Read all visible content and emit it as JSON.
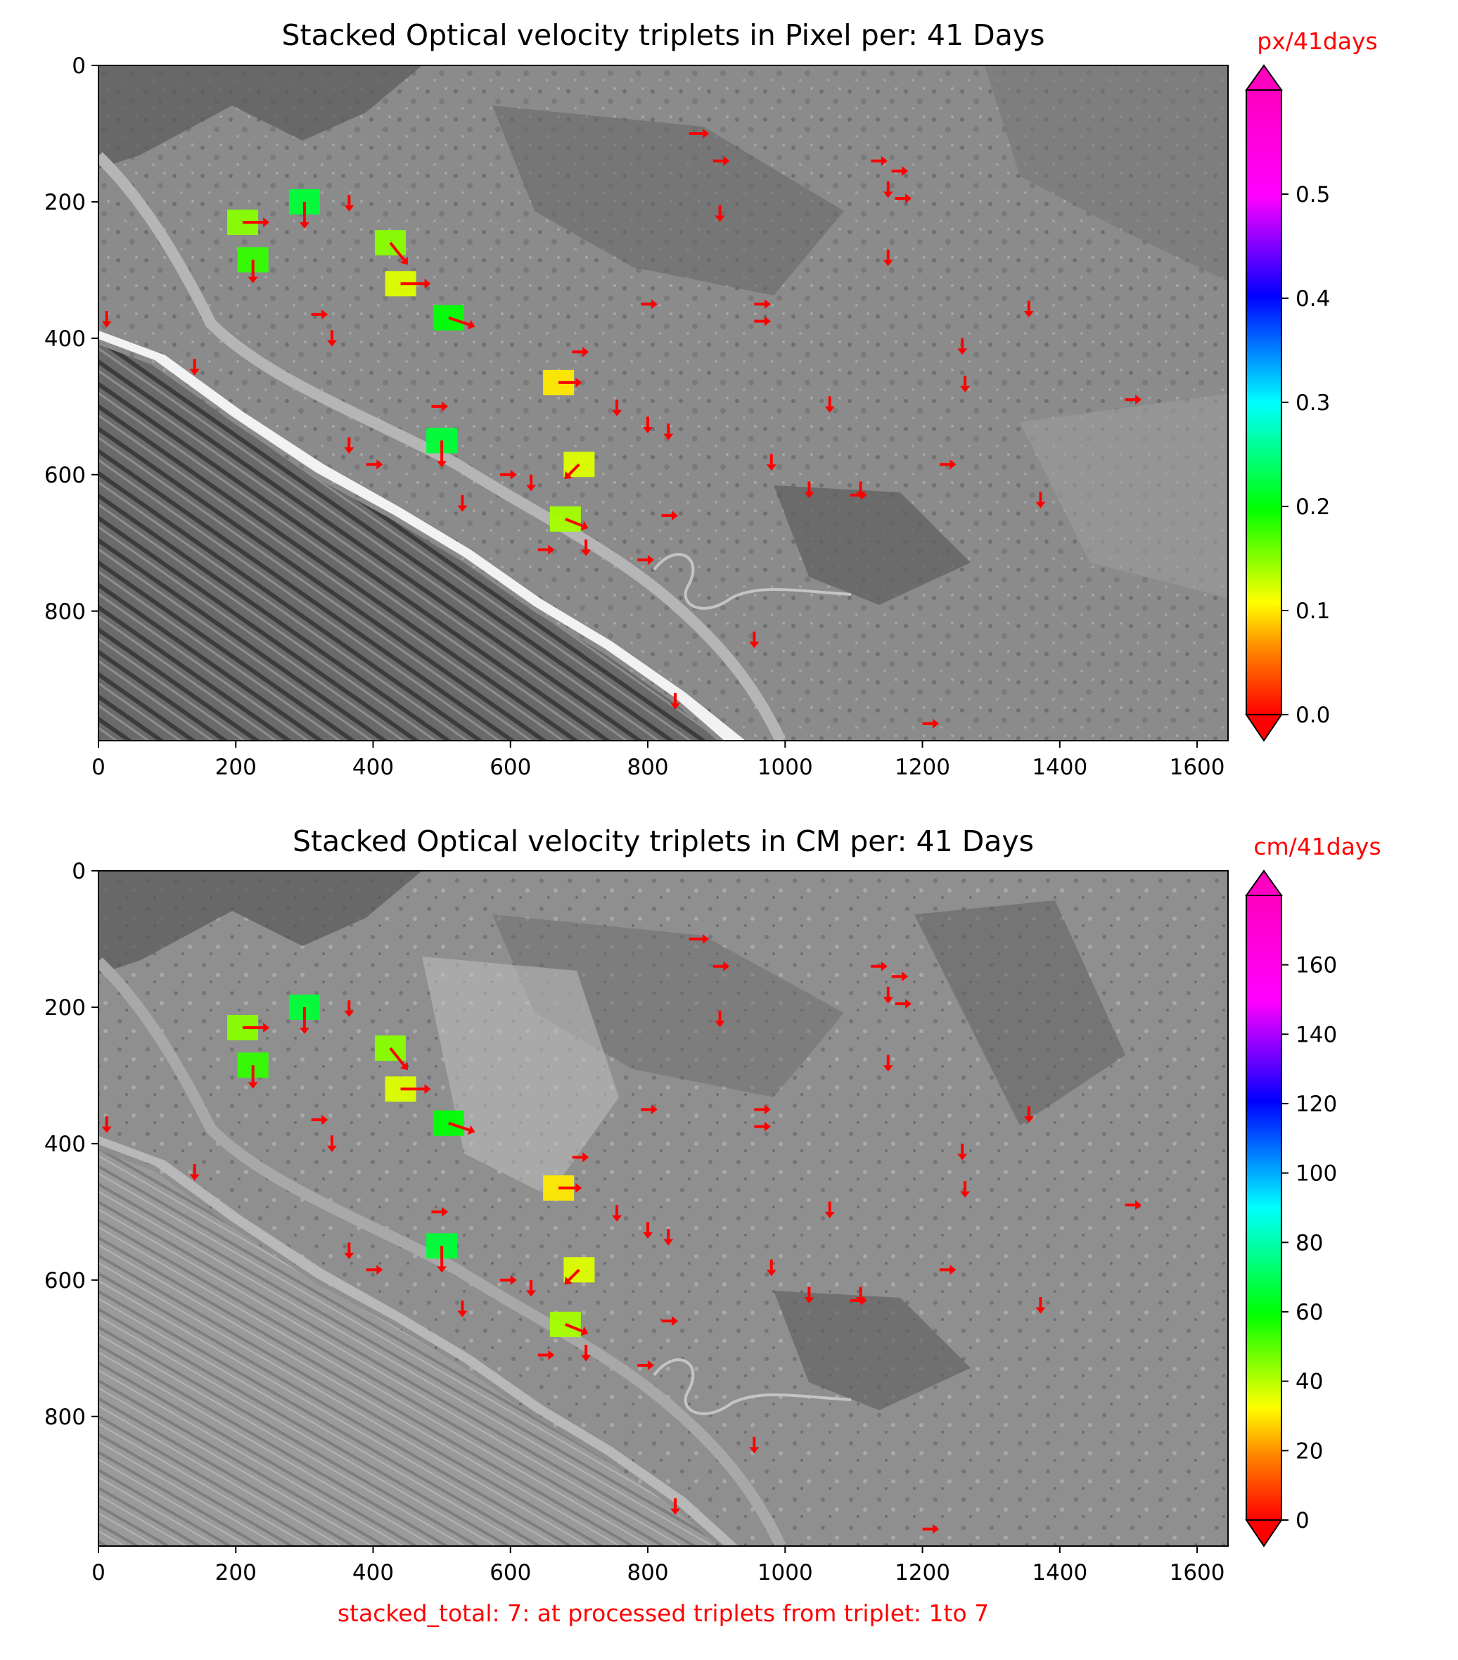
{
  "figure": {
    "footer_note": "stacked_total: 7: at processed triplets from triplet: 1to 7",
    "accent_color": "#ff0000"
  },
  "chart_data": [
    {
      "type": "heatmap",
      "title": "Stacked Optical velocity triplets in Pixel per: 41 Days",
      "xlabel": "",
      "ylabel": "",
      "xlim": [
        0,
        1645
      ],
      "ylim": [
        990,
        0
      ],
      "x_ticks": [
        0,
        200,
        400,
        600,
        800,
        1000,
        1200,
        1400,
        1600
      ],
      "y_ticks": [
        0,
        200,
        400,
        600,
        800
      ],
      "colorbar": {
        "label": "px/41days",
        "colormap": "gist_rainbow",
        "range": [
          0,
          0.6
        ],
        "ticks": [
          0.0,
          0.1,
          0.2,
          0.3,
          0.4,
          0.5
        ],
        "tick_labels": [
          "0.0",
          "0.1",
          "0.2",
          "0.3",
          "0.4",
          "0.5"
        ],
        "extend": "both"
      },
      "background": "grayscale orthophoto (coastline, road, hillslopes)",
      "vectors": [
        {
          "x": 210,
          "y": 230,
          "dx": 30,
          "dy": 0,
          "v": 0.15
        },
        {
          "x": 225,
          "y": 285,
          "dx": 0,
          "dy": 25,
          "v": 0.18
        },
        {
          "x": 300,
          "y": 200,
          "dx": 0,
          "dy": 30,
          "v": 0.22
        },
        {
          "x": 425,
          "y": 260,
          "dx": 20,
          "dy": 25,
          "v": 0.15
        },
        {
          "x": 440,
          "y": 320,
          "dx": 35,
          "dy": 0,
          "v": 0.12
        },
        {
          "x": 510,
          "y": 370,
          "dx": 30,
          "dy": 10,
          "v": 0.2
        },
        {
          "x": 500,
          "y": 550,
          "dx": 0,
          "dy": 30,
          "v": 0.22
        },
        {
          "x": 670,
          "y": 465,
          "dx": 25,
          "dy": 0,
          "v": 0.1
        },
        {
          "x": 700,
          "y": 585,
          "dx": -15,
          "dy": 15,
          "v": 0.12
        },
        {
          "x": 680,
          "y": 665,
          "dx": 25,
          "dy": 10,
          "v": 0.14
        },
        {
          "x": 12,
          "y": 360,
          "dx": 0,
          "dy": 15,
          "v": 0.02
        },
        {
          "x": 140,
          "y": 430,
          "dx": 0,
          "dy": 15,
          "v": 0.02
        },
        {
          "x": 310,
          "y": 365,
          "dx": 15,
          "dy": 0,
          "v": 0.02
        },
        {
          "x": 340,
          "y": 388,
          "dx": 0,
          "dy": 15,
          "v": 0.02
        },
        {
          "x": 365,
          "y": 190,
          "dx": 0,
          "dy": 15,
          "v": 0.02
        },
        {
          "x": 365,
          "y": 545,
          "dx": 0,
          "dy": 15,
          "v": 0.02
        },
        {
          "x": 390,
          "y": 585,
          "dx": 15,
          "dy": 0,
          "v": 0.02
        },
        {
          "x": 485,
          "y": 500,
          "dx": 15,
          "dy": 0,
          "v": 0.02
        },
        {
          "x": 530,
          "y": 630,
          "dx": 0,
          "dy": 15,
          "v": 0.02
        },
        {
          "x": 585,
          "y": 600,
          "dx": 15,
          "dy": 0,
          "v": 0.02
        },
        {
          "x": 630,
          "y": 600,
          "dx": 0,
          "dy": 15,
          "v": 0.02
        },
        {
          "x": 640,
          "y": 710,
          "dx": 15,
          "dy": 0,
          "v": 0.02
        },
        {
          "x": 690,
          "y": 420,
          "dx": 15,
          "dy": 0,
          "v": 0.02
        },
        {
          "x": 710,
          "y": 695,
          "dx": 0,
          "dy": 15,
          "v": 0.02
        },
        {
          "x": 755,
          "y": 490,
          "dx": 0,
          "dy": 15,
          "v": 0.02
        },
        {
          "x": 785,
          "y": 725,
          "dx": 15,
          "dy": 0,
          "v": 0.02
        },
        {
          "x": 790,
          "y": 350,
          "dx": 15,
          "dy": 0,
          "v": 0.02
        },
        {
          "x": 800,
          "y": 515,
          "dx": 0,
          "dy": 15,
          "v": 0.02
        },
        {
          "x": 820,
          "y": 660,
          "dx": 15,
          "dy": 0,
          "v": 0.02
        },
        {
          "x": 830,
          "y": 525,
          "dx": 0,
          "dy": 15,
          "v": 0.02
        },
        {
          "x": 840,
          "y": 920,
          "dx": 0,
          "dy": 15,
          "v": 0.02
        },
        {
          "x": 860,
          "y": 100,
          "dx": 20,
          "dy": 0,
          "v": 0.02
        },
        {
          "x": 895,
          "y": 140,
          "dx": 15,
          "dy": 0,
          "v": 0.02
        },
        {
          "x": 905,
          "y": 205,
          "dx": 0,
          "dy": 15,
          "v": 0.02
        },
        {
          "x": 955,
          "y": 350,
          "dx": 15,
          "dy": 0,
          "v": 0.02
        },
        {
          "x": 955,
          "y": 375,
          "dx": 15,
          "dy": 0,
          "v": 0.02
        },
        {
          "x": 955,
          "y": 830,
          "dx": 0,
          "dy": 15,
          "v": 0.02
        },
        {
          "x": 980,
          "y": 570,
          "dx": 0,
          "dy": 15,
          "v": 0.02
        },
        {
          "x": 1035,
          "y": 610,
          "dx": 0,
          "dy": 15,
          "v": 0.02
        },
        {
          "x": 1065,
          "y": 485,
          "dx": 0,
          "dy": 15,
          "v": 0.02
        },
        {
          "x": 1095,
          "y": 630,
          "dx": 15,
          "dy": 0,
          "v": 0.02
        },
        {
          "x": 1110,
          "y": 610,
          "dx": 0,
          "dy": 15,
          "v": 0.02
        },
        {
          "x": 1125,
          "y": 140,
          "dx": 15,
          "dy": 0,
          "v": 0.02
        },
        {
          "x": 1150,
          "y": 170,
          "dx": 0,
          "dy": 15,
          "v": 0.02
        },
        {
          "x": 1155,
          "y": 155,
          "dx": 15,
          "dy": 0,
          "v": 0.02
        },
        {
          "x": 1160,
          "y": 195,
          "dx": 15,
          "dy": 0,
          "v": 0.02
        },
        {
          "x": 1150,
          "y": 270,
          "dx": 0,
          "dy": 15,
          "v": 0.02
        },
        {
          "x": 1200,
          "y": 965,
          "dx": 15,
          "dy": 0,
          "v": 0.02
        },
        {
          "x": 1225,
          "y": 585,
          "dx": 15,
          "dy": 0,
          "v": 0.02
        },
        {
          "x": 1258,
          "y": 400,
          "dx": 0,
          "dy": 15,
          "v": 0.02
        },
        {
          "x": 1262,
          "y": 455,
          "dx": 0,
          "dy": 15,
          "v": 0.02
        },
        {
          "x": 1355,
          "y": 345,
          "dx": 0,
          "dy": 15,
          "v": 0.02
        },
        {
          "x": 1372,
          "y": 625,
          "dx": 0,
          "dy": 15,
          "v": 0.02
        },
        {
          "x": 1495,
          "y": 490,
          "dx": 15,
          "dy": 0,
          "v": 0.02
        }
      ]
    },
    {
      "type": "heatmap",
      "title": "Stacked Optical velocity triplets in CM per: 41 Days",
      "xlabel": "",
      "ylabel": "",
      "xlim": [
        0,
        1645
      ],
      "ylim": [
        990,
        0
      ],
      "x_ticks": [
        0,
        200,
        400,
        600,
        800,
        1000,
        1200,
        1400,
        1600
      ],
      "y_ticks": [
        0,
        200,
        400,
        600,
        800
      ],
      "colorbar": {
        "label": "cm/41days",
        "colormap": "gist_rainbow",
        "range": [
          0,
          180
        ],
        "ticks": [
          0,
          20,
          40,
          60,
          80,
          100,
          120,
          140,
          160
        ],
        "tick_labels": [
          "0",
          "20",
          "40",
          "60",
          "80",
          "100",
          "120",
          "140",
          "160"
        ],
        "extend": "both"
      },
      "background": "grayscale orthophoto (coastline, road, hillslopes)",
      "vectors": "same field as pixel panel (scaled to cm)"
    }
  ]
}
